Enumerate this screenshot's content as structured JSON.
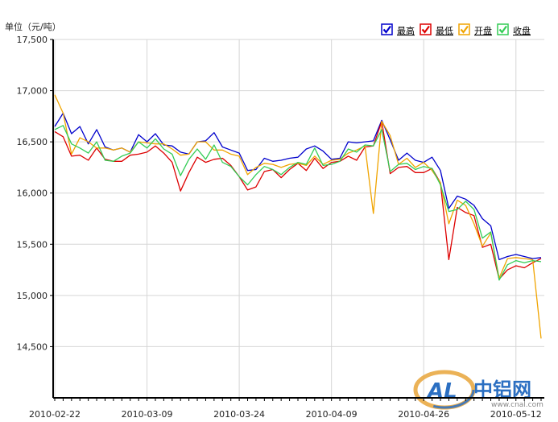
{
  "chart_data": {
    "type": "line",
    "unit_label": "单位（元/吨）",
    "ylim": [
      14000,
      17500
    ],
    "yticks": [
      {
        "value": 14500,
        "label": "14,500"
      },
      {
        "value": 15000,
        "label": "15,000"
      },
      {
        "value": 15500,
        "label": "15,500"
      },
      {
        "value": 16000,
        "label": "16,000"
      },
      {
        "value": 16500,
        "label": "16,500"
      },
      {
        "value": 17000,
        "label": "17,000"
      },
      {
        "value": 17500,
        "label": "17,500"
      }
    ],
    "xticks": [
      {
        "index": 0,
        "label": "2010-02-22"
      },
      {
        "index": 11,
        "label": "2010-03-09"
      },
      {
        "index": 22,
        "label": "2010-03-24"
      },
      {
        "index": 33,
        "label": "2010-04-09"
      },
      {
        "index": 44,
        "label": "2010-04-26"
      },
      {
        "index": 55,
        "label": "2010-05-12"
      }
    ],
    "grid": true,
    "legend_position": "top-right",
    "series": [
      {
        "name": "最高",
        "color": "#0000cc",
        "values": [
          16650,
          16780,
          16580,
          16650,
          16480,
          16620,
          16450,
          16420,
          16440,
          16400,
          16570,
          16500,
          16580,
          16470,
          16460,
          16400,
          16380,
          16500,
          16510,
          16590,
          16450,
          16420,
          16390,
          16220,
          16230,
          16340,
          16310,
          16320,
          16340,
          16350,
          16430,
          16460,
          16410,
          16330,
          16340,
          16500,
          16490,
          16500,
          16510,
          16710,
          16520,
          16320,
          16390,
          16320,
          16300,
          16350,
          16220,
          15850,
          15970,
          15940,
          15880,
          15750,
          15680,
          15350,
          15380,
          15400,
          15380,
          15360,
          15370
        ]
      },
      {
        "name": "最低",
        "color": "#dd0000",
        "values": [
          16600,
          16550,
          16360,
          16370,
          16320,
          16440,
          16330,
          16310,
          16310,
          16370,
          16380,
          16400,
          16460,
          16390,
          16300,
          16020,
          16200,
          16350,
          16300,
          16330,
          16340,
          16270,
          16160,
          16030,
          16060,
          16210,
          16230,
          16150,
          16230,
          16290,
          16220,
          16340,
          16240,
          16300,
          16310,
          16360,
          16320,
          16450,
          16460,
          16700,
          16190,
          16250,
          16260,
          16200,
          16200,
          16240,
          16100,
          15350,
          15860,
          15810,
          15780,
          15470,
          15500,
          15160,
          15250,
          15290,
          15270,
          15320,
          15360
        ]
      },
      {
        "name": "开盘",
        "color": "#f0a400",
        "values": [
          16960,
          16780,
          16380,
          16540,
          16500,
          16440,
          16440,
          16420,
          16440,
          16400,
          16500,
          16490,
          16480,
          16480,
          16430,
          16370,
          16380,
          16500,
          16500,
          16420,
          16420,
          16380,
          16360,
          16180,
          16250,
          16290,
          16280,
          16250,
          16280,
          16290,
          16270,
          16360,
          16280,
          16320,
          16330,
          16390,
          16420,
          16460,
          15800,
          16700,
          16560,
          16280,
          16340,
          16250,
          16300,
          16220,
          16100,
          15700,
          15930,
          15880,
          15700,
          15480,
          15610,
          15170,
          15360,
          15370,
          15360,
          15350,
          14580
        ]
      },
      {
        "name": "收盘",
        "color": "#33cc55",
        "values": [
          16620,
          16660,
          16480,
          16440,
          16390,
          16500,
          16320,
          16310,
          16360,
          16390,
          16500,
          16440,
          16530,
          16430,
          16380,
          16170,
          16330,
          16430,
          16330,
          16470,
          16300,
          16260,
          16160,
          16080,
          16180,
          16260,
          16230,
          16180,
          16250,
          16300,
          16280,
          16440,
          16270,
          16280,
          16310,
          16430,
          16400,
          16470,
          16460,
          16620,
          16210,
          16280,
          16290,
          16230,
          16260,
          16240,
          16080,
          15820,
          15840,
          15920,
          15840,
          15560,
          15620,
          15150,
          15300,
          15340,
          15320,
          15340,
          15330
        ]
      }
    ]
  },
  "logo": {
    "brand": "中铝网",
    "site": "www.cnal.com",
    "mark": "AL"
  }
}
